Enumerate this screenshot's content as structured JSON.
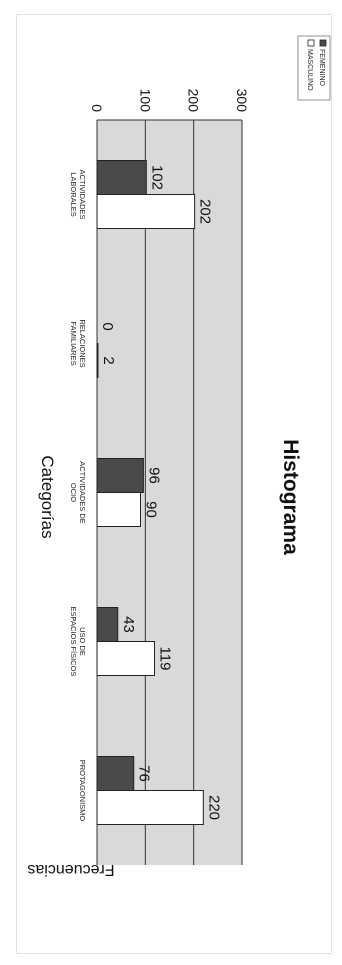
{
  "chart_data": {
    "type": "bar",
    "title": "Histograma",
    "xlabel": "Categorías",
    "ylabel": "Frecuencias",
    "categories": [
      "ACTIVIDADES LABORALES",
      "RELACIONES FAMILIARES",
      "ACTIVIDADES DE OCIO",
      "USO DE ESPACIOS FÍSICOS",
      "PROTAGONISMO"
    ],
    "series": [
      {
        "name": "FEMENINO",
        "values": [
          102,
          0,
          96,
          43,
          76
        ],
        "color": "#4a4a4a"
      },
      {
        "name": "MASCULINO",
        "values": [
          202,
          2,
          90,
          119,
          220
        ],
        "color": "#ffffff"
      }
    ],
    "ylim": [
      0,
      300
    ],
    "yticks": [
      "0",
      "100",
      "200",
      "300"
    ],
    "grid": true,
    "legend_position": "top-right",
    "plot_background": "#d9d9d9"
  }
}
